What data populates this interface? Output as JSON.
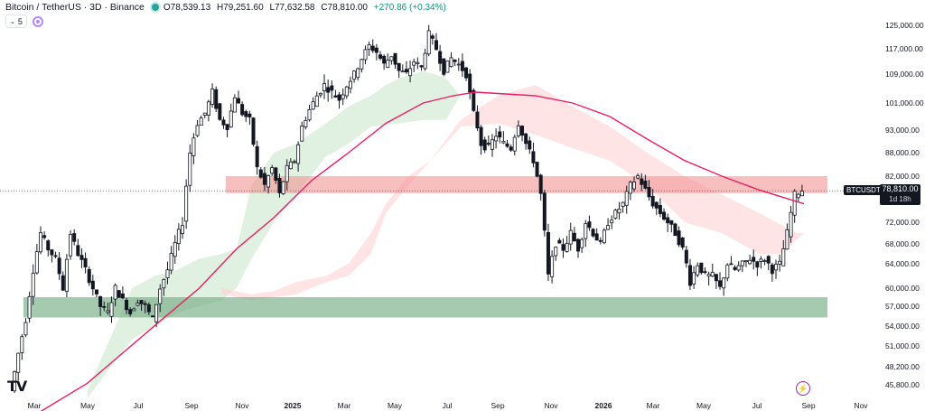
{
  "header": {
    "title": "Bitcoin / TetherUS · 3D · Binance",
    "open": "O78,539.13",
    "high": "H79,251.60",
    "low": "L77,632.58",
    "close": "C78,810.00",
    "change": "+270.86 (+0.34%)",
    "indicator_count": "5"
  },
  "price_label": {
    "symbol": "BTCUSDT",
    "price": "78,810.00",
    "countdown": "1d 18h"
  },
  "colors": {
    "up": "#089981",
    "down": "#131722",
    "ma": "#e91e63",
    "resistance_zone": "#f28b8b",
    "support_zone": "#6aa77a",
    "cloud_green": "#c8e6c9",
    "cloud_red": "#ffcdd2"
  },
  "chart_data": {
    "type": "candlestick",
    "title": "Bitcoin / TetherUS · 3D · Binance",
    "y_axis_ticks": [
      "125,000.00",
      "117,000.00",
      "109,000.00",
      "101,000.00",
      "93,000.00",
      "88,000.00",
      "82,000.00",
      "78,810.00",
      "72,000.00",
      "68,000.00",
      "64,000.00",
      "60,000.00",
      "57,000.00",
      "54,000.00",
      "51,000.00",
      "48,200.00",
      "45,800.00"
    ],
    "y_ticks": [
      125000,
      117000,
      109000,
      101000,
      93000,
      88000,
      82000,
      72000,
      68000,
      64000,
      60000,
      57000,
      54000,
      51000,
      48200,
      45800
    ],
    "x_axis_ticks": [
      "Mar",
      "May",
      "Jul",
      "Sep",
      "Nov",
      "2025",
      "Mar",
      "May",
      "Jul",
      "Sep",
      "Nov",
      "2026",
      "Mar",
      "May",
      "Jul",
      "Sep",
      "Nov"
    ],
    "last_price": 78810,
    "zones": [
      {
        "name": "resistance",
        "low": 78300,
        "high": 82000
      },
      {
        "name": "support",
        "low": 55300,
        "high": 58500
      }
    ],
    "price_path": [
      [
        0,
        45000
      ],
      [
        2,
        50000
      ],
      [
        4,
        55000
      ],
      [
        6,
        63000
      ],
      [
        8,
        70000
      ],
      [
        10,
        67000
      ],
      [
        12,
        65000
      ],
      [
        14,
        60000
      ],
      [
        16,
        70000
      ],
      [
        18,
        66000
      ],
      [
        20,
        63000
      ],
      [
        22,
        60000
      ],
      [
        24,
        57000
      ],
      [
        26,
        56000
      ],
      [
        28,
        60000
      ],
      [
        30,
        58000
      ],
      [
        32,
        56000
      ],
      [
        34,
        58000
      ],
      [
        36,
        57000
      ],
      [
        38,
        55000
      ],
      [
        40,
        60000
      ],
      [
        42,
        63000
      ],
      [
        44,
        68000
      ],
      [
        46,
        72000
      ],
      [
        48,
        88000
      ],
      [
        50,
        95000
      ],
      [
        52,
        98000
      ],
      [
        54,
        104000
      ],
      [
        56,
        96000
      ],
      [
        58,
        94000
      ],
      [
        60,
        103000
      ],
      [
        62,
        98000
      ],
      [
        64,
        96000
      ],
      [
        66,
        84000
      ],
      [
        68,
        80000
      ],
      [
        70,
        84000
      ],
      [
        72,
        78000
      ],
      [
        74,
        84000
      ],
      [
        76,
        86000
      ],
      [
        78,
        94000
      ],
      [
        80,
        99000
      ],
      [
        82,
        103000
      ],
      [
        84,
        106000
      ],
      [
        86,
        104000
      ],
      [
        88,
        102000
      ],
      [
        90,
        106000
      ],
      [
        92,
        109000
      ],
      [
        94,
        114000
      ],
      [
        96,
        118000
      ],
      [
        98,
        116000
      ],
      [
        100,
        112000
      ],
      [
        102,
        115000
      ],
      [
        104,
        110000
      ],
      [
        106,
        109000
      ],
      [
        108,
        113000
      ],
      [
        110,
        111000
      ],
      [
        112,
        122000
      ],
      [
        114,
        117000
      ],
      [
        116,
        110000
      ],
      [
        118,
        114000
      ],
      [
        120,
        112000
      ],
      [
        122,
        109000
      ],
      [
        124,
        98000
      ],
      [
        126,
        90000
      ],
      [
        128,
        89000
      ],
      [
        130,
        92000
      ],
      [
        132,
        90000
      ],
      [
        134,
        89000
      ],
      [
        136,
        95000
      ],
      [
        138,
        90000
      ],
      [
        140,
        86000
      ],
      [
        142,
        78000
      ],
      [
        144,
        62000
      ],
      [
        146,
        68000
      ],
      [
        148,
        67000
      ],
      [
        150,
        70000
      ],
      [
        152,
        67000
      ],
      [
        154,
        72000
      ],
      [
        156,
        70000
      ],
      [
        158,
        68000
      ],
      [
        160,
        72000
      ],
      [
        162,
        74000
      ],
      [
        164,
        76000
      ],
      [
        166,
        80000
      ],
      [
        168,
        82000
      ],
      [
        170,
        79000
      ],
      [
        172,
        76000
      ],
      [
        174,
        74000
      ],
      [
        176,
        72000
      ],
      [
        178,
        70000
      ],
      [
        180,
        67000
      ],
      [
        182,
        61000
      ],
      [
        184,
        64000
      ],
      [
        186,
        62000
      ],
      [
        188,
        62000
      ],
      [
        190,
        60000
      ],
      [
        192,
        64000
      ],
      [
        194,
        63000
      ],
      [
        196,
        64000
      ],
      [
        198,
        65000
      ],
      [
        200,
        64000
      ],
      [
        202,
        65000
      ],
      [
        204,
        63000
      ],
      [
        206,
        64000
      ],
      [
        208,
        70000
      ],
      [
        210,
        78000
      ],
      [
        212,
        79000
      ]
    ],
    "ma_path": [
      [
        0,
        40000
      ],
      [
        20,
        46000
      ],
      [
        40,
        55000
      ],
      [
        50,
        60000
      ],
      [
        60,
        67000
      ],
      [
        70,
        73000
      ],
      [
        75,
        77000
      ],
      [
        80,
        81000
      ],
      [
        90,
        88000
      ],
      [
        100,
        95000
      ],
      [
        110,
        101000
      ],
      [
        118,
        103000
      ],
      [
        124,
        104000
      ],
      [
        132,
        103500
      ],
      [
        140,
        103000
      ],
      [
        150,
        101000
      ],
      [
        160,
        97000
      ],
      [
        170,
        91000
      ],
      [
        180,
        86000
      ],
      [
        190,
        82000
      ],
      [
        200,
        79000
      ],
      [
        212,
        76000
      ]
    ],
    "cloud_segments": [
      {
        "color": "green",
        "points": [
          [
            20,
            45000
          ],
          [
            26,
            52000
          ],
          [
            32,
            60000
          ],
          [
            38,
            62000
          ],
          [
            44,
            63000
          ],
          [
            50,
            65000
          ],
          [
            56,
            66000
          ],
          [
            60,
            67000
          ],
          [
            64,
            80000
          ],
          [
            70,
            88000
          ],
          [
            76,
            90000
          ],
          [
            84,
            95000
          ],
          [
            90,
            100000
          ],
          [
            96,
            103000
          ],
          [
            100,
            106000
          ],
          [
            104,
            108000
          ],
          [
            110,
            110000
          ],
          [
            116,
            108000
          ],
          [
            120,
            103000
          ],
          [
            116,
            96000
          ],
          [
            110,
            96000
          ],
          [
            104,
            95000
          ],
          [
            96,
            94000
          ],
          [
            90,
            90000
          ],
          [
            84,
            87000
          ],
          [
            76,
            78000
          ],
          [
            70,
            72000
          ],
          [
            64,
            65000
          ],
          [
            60,
            60000
          ],
          [
            56,
            58000
          ],
          [
            50,
            57000
          ],
          [
            44,
            56000
          ],
          [
            38,
            54000
          ],
          [
            32,
            52000
          ],
          [
            26,
            48000
          ],
          [
            20,
            44000
          ]
        ]
      },
      {
        "color": "red",
        "points": [
          [
            56,
            60000
          ],
          [
            64,
            59000
          ],
          [
            70,
            59500
          ],
          [
            76,
            61000
          ],
          [
            84,
            62000
          ],
          [
            90,
            64000
          ],
          [
            96,
            70000
          ],
          [
            100,
            76000
          ],
          [
            106,
            82000
          ],
          [
            112,
            86000
          ],
          [
            120,
            96000
          ],
          [
            130,
            103000
          ],
          [
            140,
            106000
          ],
          [
            150,
            100000
          ],
          [
            160,
            94000
          ],
          [
            170,
            88000
          ],
          [
            180,
            82000
          ],
          [
            190,
            78000
          ],
          [
            200,
            74000
          ],
          [
            210,
            70000
          ],
          [
            212,
            70000
          ],
          [
            206,
            66000
          ],
          [
            200,
            66000
          ],
          [
            190,
            70000
          ],
          [
            180,
            72000
          ],
          [
            170,
            80000
          ],
          [
            160,
            86000
          ],
          [
            150,
            89000
          ],
          [
            140,
            92000
          ],
          [
            130,
            95000
          ],
          [
            120,
            94000
          ],
          [
            112,
            86000
          ],
          [
            106,
            80000
          ],
          [
            100,
            74000
          ],
          [
            96,
            66000
          ],
          [
            90,
            62000
          ],
          [
            84,
            61000
          ],
          [
            76,
            59000
          ],
          [
            70,
            58500
          ],
          [
            64,
            58000
          ],
          [
            56,
            59000
          ]
        ]
      }
    ]
  }
}
